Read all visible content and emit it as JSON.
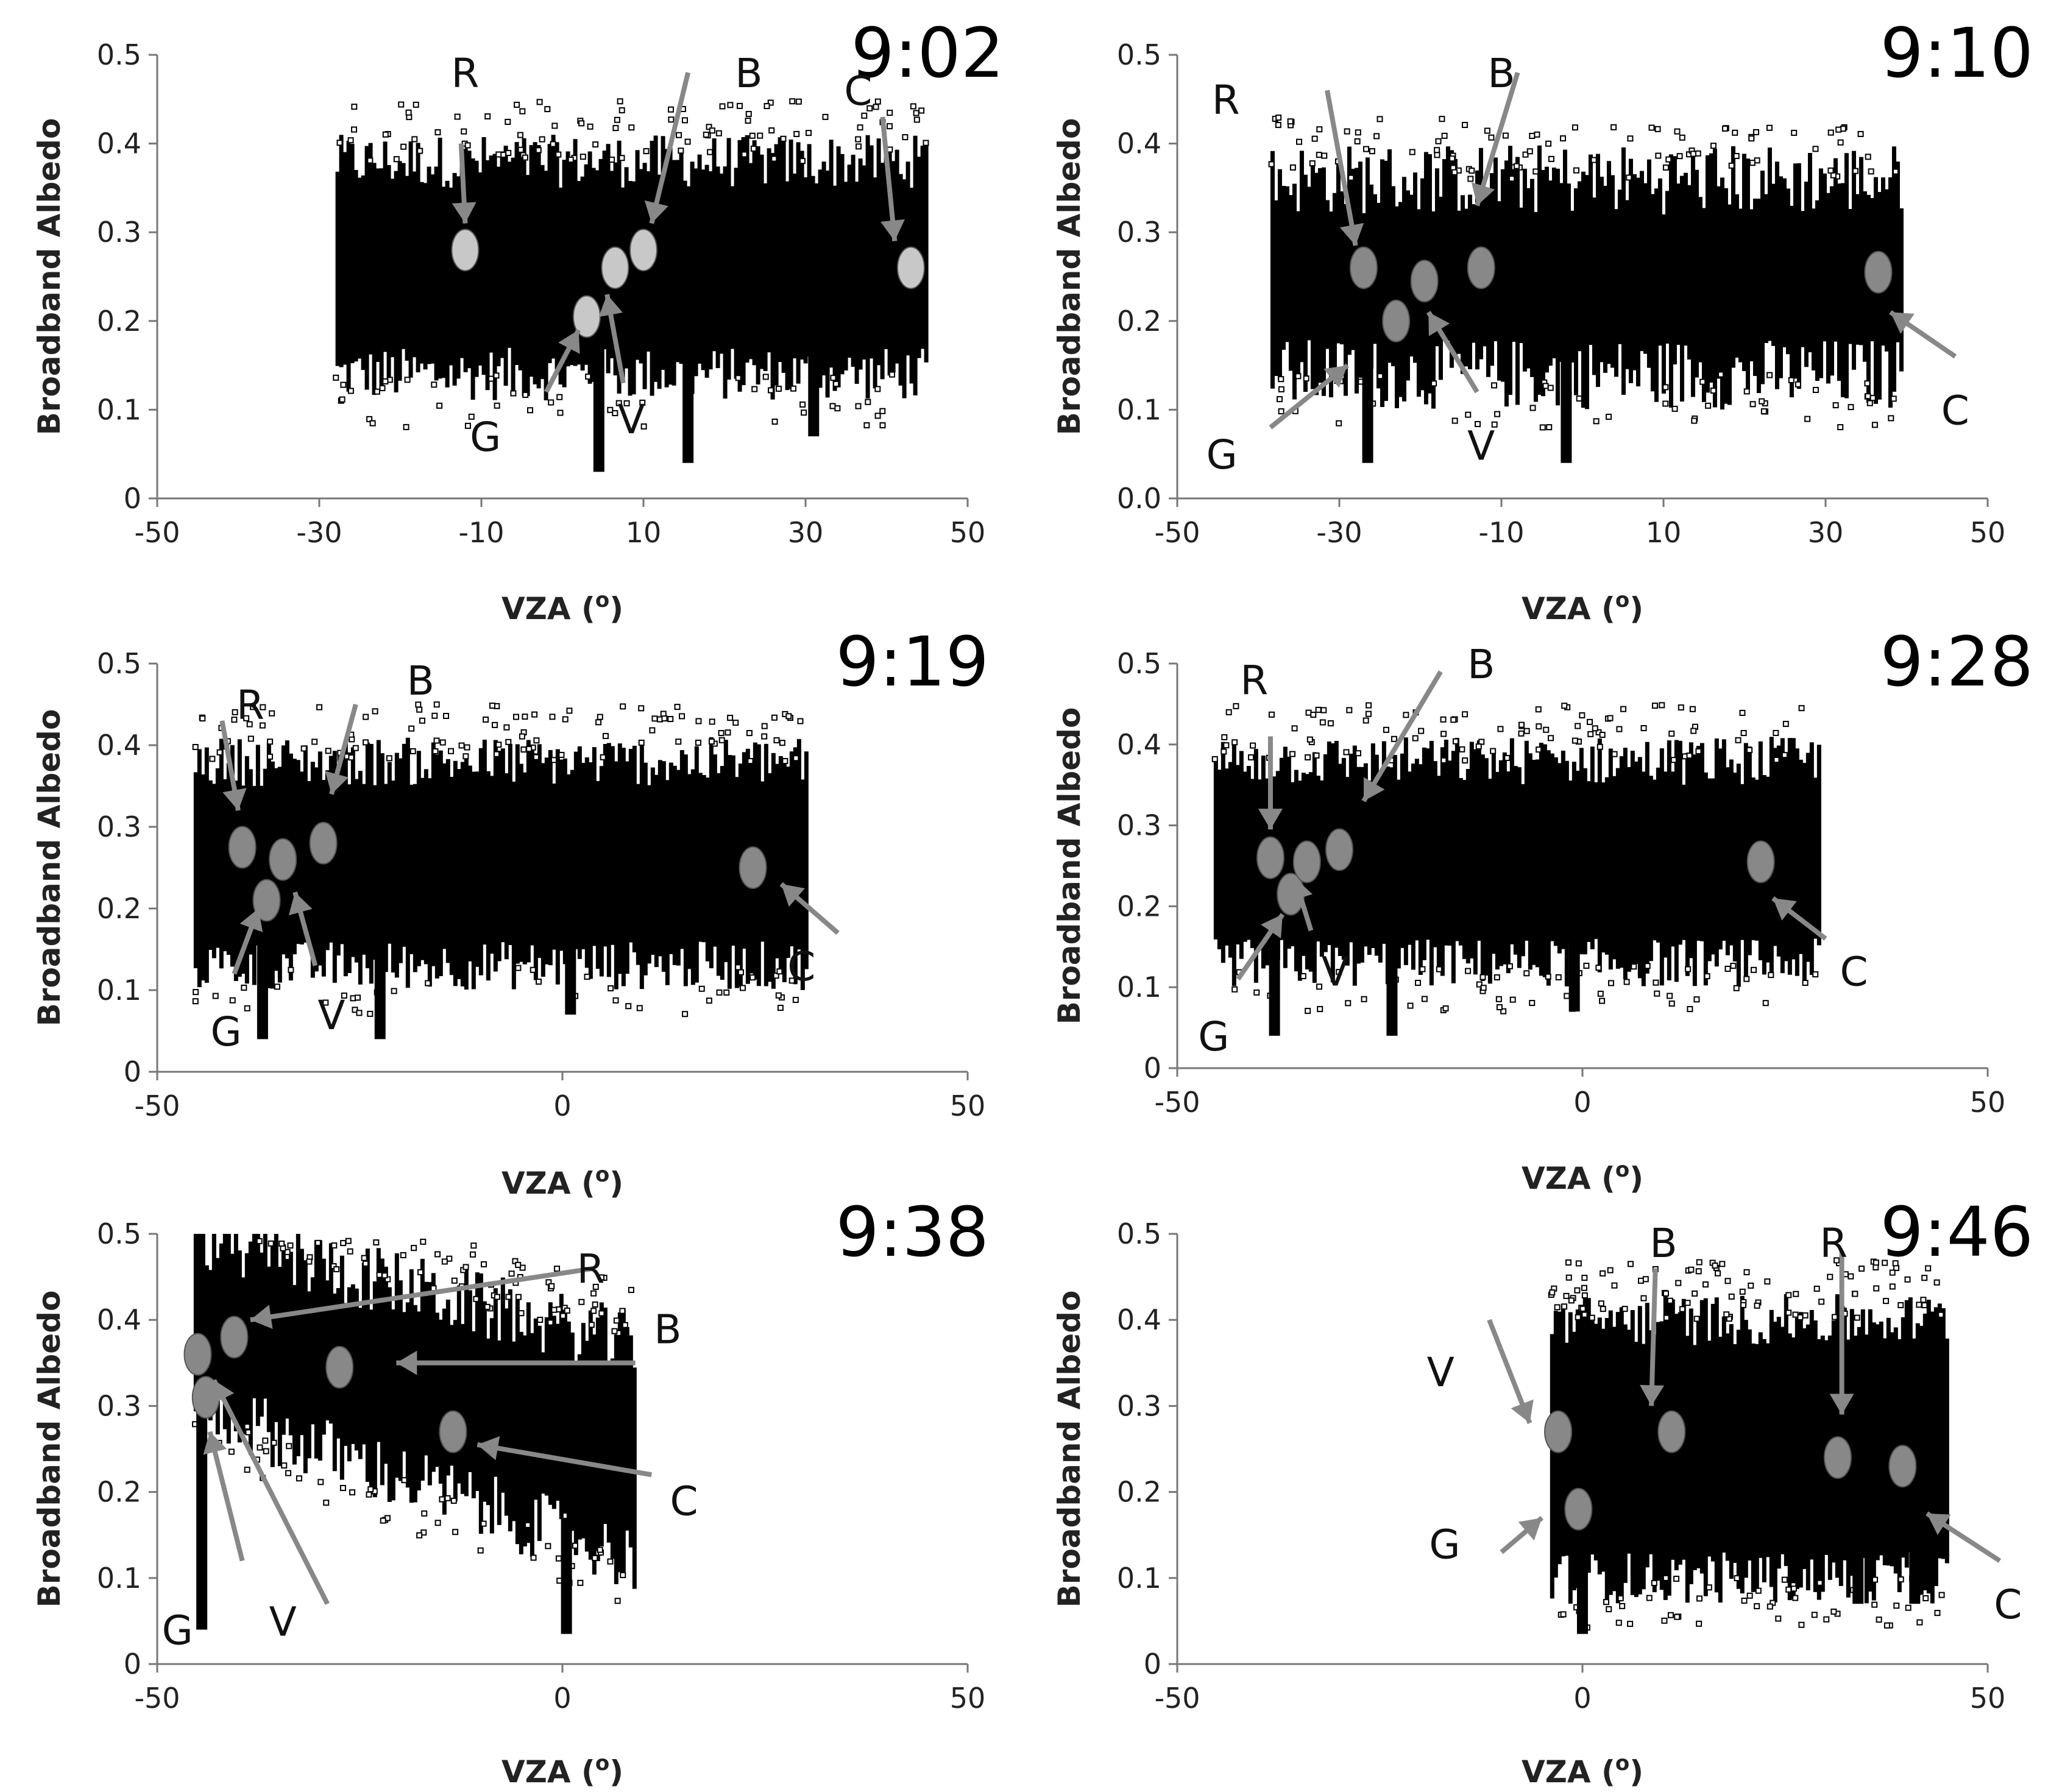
{
  "figure": {
    "title": ""
  },
  "chart_data": [
    {
      "type": "scatter",
      "title": "9:02",
      "xlabel": "VZA (o)",
      "ylabel": "Broadband Albedo",
      "xlim": [
        -50,
        50
      ],
      "ylim": [
        0,
        0.5
      ],
      "xticks": [
        "-50",
        "-30",
        "-10",
        "10",
        "30",
        "50"
      ],
      "yticks": [
        "0",
        "0.1",
        "0.2",
        "0.3",
        "0.4",
        "0.5"
      ],
      "grid": false,
      "cloud": {
        "x_range": [
          -28,
          45
        ],
        "y_range": [
          0.14,
          0.38
        ],
        "spread": 0.03
      },
      "spikes": [
        {
          "x": 4.5,
          "y_low": 0.03,
          "y_high": 0.21
        },
        {
          "x": 15.5,
          "y_low": 0.04,
          "y_high": 0.21
        },
        {
          "x": 31,
          "y_low": 0.07,
          "y_high": 0.2
        }
      ],
      "series": [
        {
          "name": "R",
          "x": -12,
          "y": 0.28,
          "color": "#c8c8c8"
        },
        {
          "name": "G",
          "x": 3,
          "y": 0.205,
          "color": "#c8c8c8"
        },
        {
          "name": "V",
          "x": 6.5,
          "y": 0.26,
          "color": "#c8c8c8"
        },
        {
          "name": "B",
          "x": 10,
          "y": 0.28,
          "color": "#c8c8c8"
        },
        {
          "name": "C",
          "x": 43,
          "y": 0.26,
          "color": "#c8c8c8"
        }
      ],
      "annotations": [
        {
          "text": "R",
          "x": -12,
          "y": 0.48,
          "ax": -12.5,
          "ay": 0.4,
          "bx": -12,
          "by": 0.31
        },
        {
          "text": "B",
          "x": 23,
          "y": 0.48,
          "ax": 15.5,
          "ay": 0.48,
          "bx": 11,
          "by": 0.31
        },
        {
          "text": "C",
          "x": 36.5,
          "y": 0.46,
          "ax": 39.5,
          "ay": 0.43,
          "bx": 41,
          "by": 0.29
        },
        {
          "text": "G",
          "x": -9.5,
          "y": 0.07,
          "ax": -2,
          "ay": 0.12,
          "bx": 2,
          "by": 0.19
        },
        {
          "text": "V",
          "x": 8.5,
          "y": 0.09,
          "ax": 7.5,
          "ay": 0.13,
          "bx": 5.5,
          "by": 0.23
        }
      ],
      "timestamp": "9:02"
    },
    {
      "type": "scatter",
      "title": "9:10",
      "xlabel": "VZA (o)",
      "ylabel": "Broadband Albedo",
      "xlim": [
        -50,
        50
      ],
      "ylim": [
        0,
        0.5
      ],
      "xticks": [
        "-50",
        "-30",
        "-10",
        "10",
        "30",
        "50"
      ],
      "yticks": [
        "0.0",
        "0.1",
        "0.2",
        "0.3",
        "0.4",
        "0.5"
      ],
      "grid": false,
      "cloud": {
        "x_range": [
          -38.5,
          39.5
        ],
        "y_range": [
          0.14,
          0.36
        ],
        "spread": 0.04
      },
      "spikes": [
        {
          "x": -26.5,
          "y_low": 0.04,
          "y_high": 0.2
        },
        {
          "x": -2,
          "y_low": 0.04,
          "y_high": 0.2
        }
      ],
      "series": [
        {
          "name": "R",
          "x": -27,
          "y": 0.26,
          "color": "#888888"
        },
        {
          "name": "G",
          "x": -23,
          "y": 0.2,
          "color": "#888888"
        },
        {
          "name": "V",
          "x": -19.5,
          "y": 0.245,
          "color": "#888888"
        },
        {
          "name": "B",
          "x": -12.5,
          "y": 0.26,
          "color": "#888888"
        },
        {
          "name": "C",
          "x": 36.5,
          "y": 0.255,
          "color": "#888888"
        }
      ],
      "annotations": [
        {
          "text": "R",
          "x": -44,
          "y": 0.45,
          "ax": -31.5,
          "ay": 0.46,
          "bx": -28,
          "by": 0.285
        },
        {
          "text": "B",
          "x": -10,
          "y": 0.48,
          "ax": -8,
          "ay": 0.48,
          "bx": -13,
          "by": 0.33
        },
        {
          "text": "C",
          "x": 46,
          "y": 0.1,
          "ax": 46,
          "ay": 0.16,
          "bx": 38,
          "by": 0.21
        },
        {
          "text": "G",
          "x": -44.5,
          "y": 0.05,
          "ax": -38.5,
          "ay": 0.08,
          "bx": -29,
          "by": 0.15
        },
        {
          "text": "V",
          "x": -12.5,
          "y": 0.06,
          "ax": -13,
          "ay": 0.12,
          "bx": -19,
          "by": 0.21
        }
      ],
      "timestamp": "9:10"
    },
    {
      "type": "scatter",
      "title": "9:19",
      "xlabel": "VZA (o)",
      "ylabel": "Broadband Albedo",
      "xlim": [
        -50,
        50
      ],
      "ylim": [
        0,
        0.5
      ],
      "xticks": [
        "-50",
        "0",
        "50"
      ],
      "yticks": [
        "0",
        "0.1",
        "0.2",
        "0.3",
        "0.4",
        "0.5"
      ],
      "grid": false,
      "cloud": {
        "x_range": [
          -45.5,
          30
        ],
        "y_range": [
          0.13,
          0.38
        ],
        "spread": 0.03
      },
      "spikes": [
        {
          "x": -37,
          "y_low": 0.04,
          "y_high": 0.2
        },
        {
          "x": -22.5,
          "y_low": 0.04,
          "y_high": 0.2
        },
        {
          "x": 1,
          "y_low": 0.07,
          "y_high": 0.2
        }
      ],
      "series": [
        {
          "name": "R",
          "x": -39.5,
          "y": 0.275,
          "color": "#888888"
        },
        {
          "name": "G",
          "x": -36.5,
          "y": 0.21,
          "color": "#888888"
        },
        {
          "name": "V",
          "x": -34.5,
          "y": 0.26,
          "color": "#888888"
        },
        {
          "name": "B",
          "x": -29.5,
          "y": 0.28,
          "color": "#888888"
        },
        {
          "name": "C",
          "x": 23.5,
          "y": 0.25,
          "color": "#888888"
        }
      ],
      "annotations": [
        {
          "text": "R",
          "x": -38.5,
          "y": 0.45,
          "ax": -42,
          "ay": 0.43,
          "bx": -40,
          "by": 0.32
        },
        {
          "text": "B",
          "x": -17.5,
          "y": 0.48,
          "ax": -25.5,
          "ay": 0.45,
          "bx": -28.5,
          "by": 0.34
        },
        {
          "text": "C",
          "x": 29.5,
          "y": 0.13,
          "ax": 34,
          "ay": 0.17,
          "bx": 27,
          "by": 0.23
        },
        {
          "text": "G",
          "x": -41.5,
          "y": 0.05,
          "ax": -40.5,
          "ay": 0.12,
          "bx": -37.5,
          "by": 0.2
        },
        {
          "text": "V",
          "x": -28.5,
          "y": 0.07,
          "ax": -30.5,
          "ay": 0.13,
          "bx": -33,
          "by": 0.22
        }
      ],
      "timestamp": "9:19"
    },
    {
      "type": "scatter",
      "title": "9:28",
      "xlabel": "VZA (o)",
      "ylabel": "Broadband Albedo",
      "xlim": [
        -50,
        50
      ],
      "ylim": [
        0,
        0.5
      ],
      "xticks": [
        "-50",
        "0",
        "50"
      ],
      "yticks": [
        "0",
        "0.1",
        "0.2",
        "0.3",
        "0.4",
        "0.5"
      ],
      "grid": false,
      "cloud": {
        "x_range": [
          -45.5,
          29
        ],
        "y_range": [
          0.13,
          0.38
        ],
        "spread": 0.03
      },
      "spikes": [
        {
          "x": -38,
          "y_low": 0.04,
          "y_high": 0.2
        },
        {
          "x": -23.5,
          "y_low": 0.04,
          "y_high": 0.2
        },
        {
          "x": -1,
          "y_low": 0.07,
          "y_high": 0.2
        }
      ],
      "series": [
        {
          "name": "R",
          "x": -38.5,
          "y": 0.26,
          "color": "#888888"
        },
        {
          "name": "G",
          "x": -36,
          "y": 0.215,
          "color": "#888888"
        },
        {
          "name": "V",
          "x": -34,
          "y": 0.255,
          "color": "#888888"
        },
        {
          "name": "B",
          "x": -30,
          "y": 0.27,
          "color": "#888888"
        },
        {
          "name": "C",
          "x": 22,
          "y": 0.255,
          "color": "#888888"
        }
      ],
      "annotations": [
        {
          "text": "R",
          "x": -40.5,
          "y": 0.48,
          "ax": -38.5,
          "ay": 0.41,
          "bx": -38.5,
          "by": 0.295
        },
        {
          "text": "B",
          "x": -12.5,
          "y": 0.5,
          "ax": -17.5,
          "ay": 0.49,
          "bx": -27,
          "by": 0.33
        },
        {
          "text": "C",
          "x": 33.5,
          "y": 0.12,
          "ax": 30,
          "ay": 0.16,
          "bx": 23.5,
          "by": 0.21
        },
        {
          "text": "G",
          "x": -45.5,
          "y": 0.04,
          "ax": -42.5,
          "ay": 0.11,
          "bx": -37,
          "by": 0.19
        },
        {
          "text": "V",
          "x": -30.5,
          "y": 0.12,
          "ax": -33.5,
          "ay": 0.17,
          "bx": -35.5,
          "by": 0.235
        }
      ],
      "timestamp": "9:28"
    },
    {
      "type": "scatter",
      "title": "9:38",
      "xlabel": "VZA (o)",
      "ylabel": "Broadband Albedo",
      "xlim": [
        -50,
        50
      ],
      "ylim": [
        0,
        0.5
      ],
      "xticks": [
        "-50",
        "0",
        "50"
      ],
      "yticks": [
        "0",
        "0.1",
        "0.2",
        "0.3",
        "0.4",
        "0.5"
      ],
      "grid": false,
      "cloud": {
        "x_range": [
          -45.5,
          9
        ],
        "y_range_left": [
          0.3,
          0.5
        ],
        "y_range_right": [
          0.12,
          0.37
        ],
        "spread": 0.04
      },
      "spikes": [
        {
          "x": -44.5,
          "y_low": 0.04,
          "y_high": 0.3
        },
        {
          "x": 0.5,
          "y_low": 0.035,
          "y_high": 0.17
        }
      ],
      "series": [
        {
          "name": "R",
          "x": -40.5,
          "y": 0.38,
          "color": "#888888"
        },
        {
          "name": "G",
          "x": -45,
          "y": 0.36,
          "color": "#888888"
        },
        {
          "name": "V",
          "x": -44,
          "y": 0.31,
          "color": "#888888"
        },
        {
          "name": "B",
          "x": -27.5,
          "y": 0.345,
          "color": "#888888"
        },
        {
          "name": "C",
          "x": -13.5,
          "y": 0.27,
          "color": "#888888"
        }
      ],
      "annotations": [
        {
          "text": "R",
          "x": 3.5,
          "y": 0.46,
          "ax": 4,
          "ay": 0.46,
          "bx": -38.5,
          "by": 0.4
        },
        {
          "text": "B",
          "x": 13,
          "y": 0.39,
          "ax": 9,
          "ay": 0.35,
          "bx": -20.5,
          "by": 0.35
        },
        {
          "text": "C",
          "x": 15,
          "y": 0.19,
          "ax": 11,
          "ay": 0.22,
          "bx": -10.5,
          "by": 0.255
        },
        {
          "text": "G",
          "x": -47.5,
          "y": 0.04,
          "ax": -39.5,
          "ay": 0.12,
          "bx": -43.5,
          "by": 0.27
        },
        {
          "text": "V",
          "x": -34.5,
          "y": 0.05,
          "ax": -29,
          "ay": 0.07,
          "bx": -43,
          "by": 0.33
        }
      ],
      "timestamp": "9:38"
    },
    {
      "type": "scatter",
      "title": "9:46",
      "xlabel": "VZA (o)",
      "ylabel": "Broadband Albedo",
      "xlim": [
        -50,
        50
      ],
      "ylim": [
        0,
        0.5
      ],
      "xticks": [
        "-50",
        "0",
        "50"
      ],
      "yticks": [
        "0",
        "0.1",
        "0.2",
        "0.3",
        "0.4",
        "0.5"
      ],
      "grid": false,
      "cloud": {
        "x_range": [
          -4,
          45
        ],
        "y_range": [
          0.1,
          0.4
        ],
        "spread": 0.03
      },
      "spikes": [
        {
          "x": 0,
          "y_low": 0.035,
          "y_high": 0.2
        },
        {
          "x": 34,
          "y_low": 0.07,
          "y_high": 0.2
        },
        {
          "x": 41,
          "y_low": 0.07,
          "y_high": 0.2
        }
      ],
      "series": [
        {
          "name": "V",
          "x": -3,
          "y": 0.27,
          "color": "#888888"
        },
        {
          "name": "G",
          "x": -0.5,
          "y": 0.18,
          "color": "#888888"
        },
        {
          "name": "B",
          "x": 11,
          "y": 0.27,
          "color": "#888888"
        },
        {
          "name": "R",
          "x": 31.5,
          "y": 0.24,
          "color": "#888888"
        },
        {
          "name": "C",
          "x": 39.5,
          "y": 0.23,
          "color": "#888888"
        }
      ],
      "annotations": [
        {
          "text": "V",
          "x": -17.5,
          "y": 0.34,
          "ax": -11.5,
          "ay": 0.4,
          "bx": -6.5,
          "by": 0.28
        },
        {
          "text": "B",
          "x": 10,
          "y": 0.49,
          "ax": 9,
          "ay": 0.46,
          "bx": 8.5,
          "by": 0.3
        },
        {
          "text": "R",
          "x": 31,
          "y": 0.49,
          "ax": 32,
          "ay": 0.48,
          "bx": 32,
          "by": 0.29
        },
        {
          "text": "C",
          "x": 52.5,
          "y": 0.07,
          "ax": 51.5,
          "ay": 0.12,
          "bx": 42.5,
          "by": 0.175
        },
        {
          "text": "G",
          "x": -17,
          "y": 0.14,
          "ax": -10,
          "ay": 0.13,
          "bx": -5,
          "by": 0.17
        }
      ],
      "timestamp": "9:46"
    }
  ]
}
